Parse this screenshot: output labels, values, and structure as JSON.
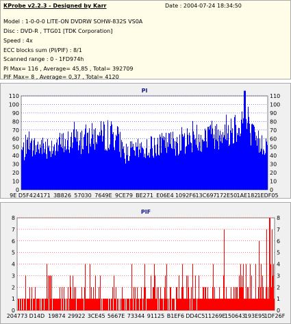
{
  "info": {
    "title": "KProbe v2.2.3 - Designed by Karr",
    "date": "Date : 2004-07-24 18:34:50",
    "lines": [
      "Model : 1-0-0-0 LITE-ON DVDRW SOHW-832S  VS0A",
      "Disc : DVD-R , TTG01 [TDK Corporation]",
      "Speed : 4x",
      "ECC blocks sum (PI/PIF) : 8/1",
      "Scanned range : 0 - 1FD974h",
      "PI Max= 116 , Average= 45,85 , Total= 392709",
      "PIF Max= 8 , Average= 0,37 , Total= 4120"
    ]
  },
  "colors": {
    "plot_background": "#ffffff",
    "grid": "#0000ff",
    "pi_series": "#0000ff",
    "pif_series": "#ff0000",
    "pif_grid": "#ff0000",
    "title_text": "#1a1a8c"
  },
  "chart_data": [
    {
      "type": "bar",
      "title": "PI",
      "xlabel": "",
      "ylabel": "",
      "ylim": [
        0,
        110
      ],
      "yticks": [
        0,
        10,
        20,
        30,
        40,
        50,
        60,
        70,
        80,
        90,
        100,
        110
      ],
      "y_axis_both_sides": true,
      "grid": true,
      "x_tick_labels": [
        "9E D5F4",
        "24171",
        "3B826",
        "57030",
        "7649E",
        "9CE79",
        "BE271",
        "E06E4",
        "1092F6",
        "13C697",
        "172E50",
        "1AE182",
        "1EDF05"
      ],
      "profile_x": [
        0,
        0.05,
        0.1,
        0.15,
        0.2,
        0.25,
        0.3,
        0.35,
        0.38,
        0.4,
        0.42,
        0.45,
        0.5,
        0.55,
        0.6,
        0.65,
        0.7,
        0.75,
        0.8,
        0.85,
        0.88,
        0.9,
        0.93,
        0.95,
        1.0
      ],
      "profile_y": [
        58,
        64,
        66,
        68,
        72,
        76,
        80,
        82,
        84,
        70,
        55,
        58,
        62,
        66,
        70,
        74,
        78,
        82,
        86,
        92,
        100,
        108,
        85,
        72,
        68
      ],
      "max": 116,
      "average": 45.85
    },
    {
      "type": "bar",
      "title": "PIF",
      "xlabel": "",
      "ylabel": "",
      "ylim": [
        0,
        8
      ],
      "yticks": [
        0,
        1,
        2,
        3,
        4,
        5,
        6,
        7,
        8
      ],
      "y_axis_both_sides": true,
      "grid": true,
      "x_tick_labels": [
        "204773",
        "D14D",
        "19874",
        "29922",
        "3CE45",
        "5667E",
        "73344",
        "91125",
        "B1EF6",
        "DD4C5",
        "11269E",
        "150643",
        "193E95",
        "1DF26F"
      ],
      "max": 8,
      "average": 0.37
    }
  ]
}
